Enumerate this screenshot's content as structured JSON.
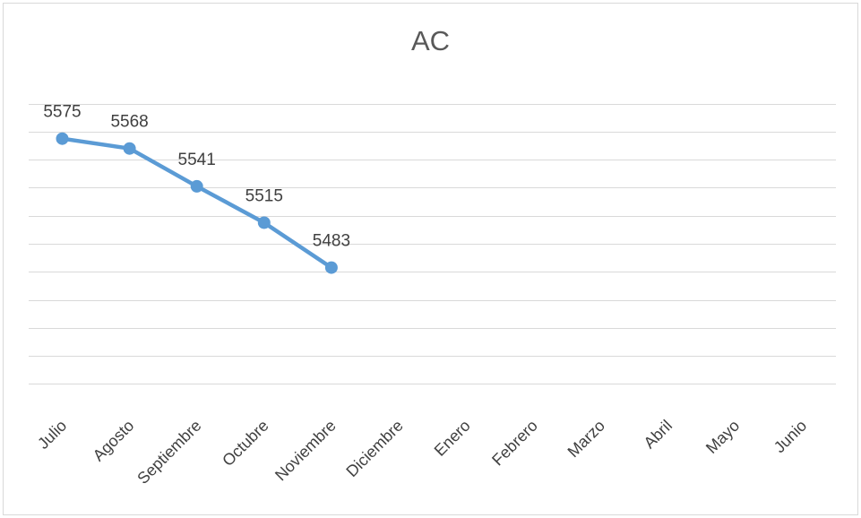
{
  "chart_data": {
    "type": "line",
    "title": "AC",
    "categories": [
      "Julio",
      "Agosto",
      "Septiembre",
      "Octubre",
      "Noviembre",
      "Diciembre",
      "Enero",
      "Febrero",
      "Marzo",
      "Abril",
      "Mayo",
      "Junio"
    ],
    "series": [
      {
        "name": "",
        "values": [
          5575,
          5568,
          5541,
          5515,
          5483,
          null,
          null,
          null,
          null,
          null,
          null,
          null
        ]
      }
    ],
    "ylim": [
      5390,
      5610
    ],
    "y_gridline_step": 20,
    "y_axis_labels_shown": false,
    "grid": true,
    "legend": "none",
    "colors": {
      "series": "#5b9bd5",
      "grid": "#d9d9d9",
      "text": "#404040",
      "title": "#595959"
    }
  }
}
